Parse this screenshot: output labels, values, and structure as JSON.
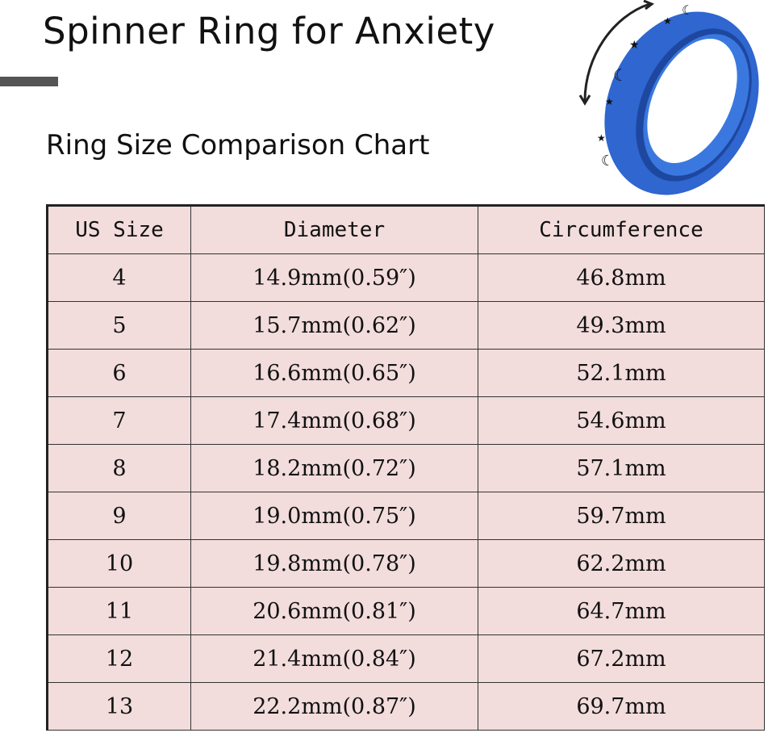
{
  "header": {
    "title": "Spinner Ring for Anxiety",
    "subtitle": "Ring Size Comparison Chart"
  },
  "product_image": {
    "icon": "blue-spinner-ring-with-stars-and-moons",
    "color": "#2a62c9"
  },
  "table": {
    "background": "#f2dcdc",
    "headers": [
      "US Size",
      "Diameter",
      "Circumference"
    ],
    "rows": [
      [
        "4",
        "14.9mm(0.59″)",
        "46.8mm"
      ],
      [
        "5",
        "15.7mm(0.62″)",
        "49.3mm"
      ],
      [
        "6",
        "16.6mm(0.65″)",
        "52.1mm"
      ],
      [
        "7",
        "17.4mm(0.68″)",
        "54.6mm"
      ],
      [
        "8",
        "18.2mm(0.72″)",
        "57.1mm"
      ],
      [
        "9",
        "19.0mm(0.75″)",
        "59.7mm"
      ],
      [
        "10",
        "19.8mm(0.78″)",
        "62.2mm"
      ],
      [
        "11",
        "20.6mm(0.81″)",
        "64.7mm"
      ],
      [
        "12",
        "21.4mm(0.84″)",
        "67.2mm"
      ],
      [
        "13",
        "22.2mm(0.87″)",
        "69.7mm"
      ]
    ]
  }
}
